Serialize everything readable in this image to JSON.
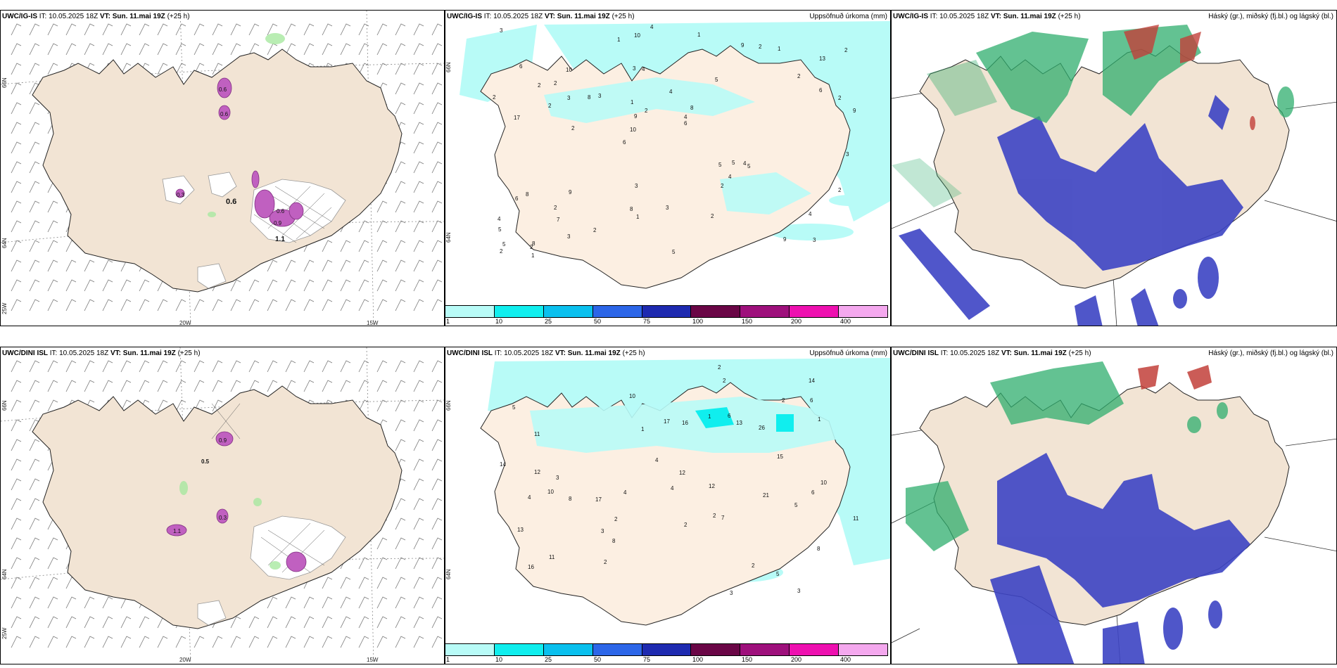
{
  "top_row": {
    "wind_panel": {
      "model": "UWC/IG-IS",
      "it_label": "IT:",
      "it_value": "10.05.2025 18Z",
      "vt_label": "VT:",
      "vt_value": "Sun. 11.mai 19Z",
      "lead": "(+25 h)",
      "values": [
        "0.6",
        "0.6",
        "0.6",
        "0.6",
        "0.9",
        "1.1",
        "0.3"
      ],
      "lat_labels": [
        "66N",
        "64N",
        "25W"
      ],
      "lon_labels": [
        "20W",
        "15W"
      ]
    },
    "precip_panel": {
      "model": "UWC/IG-IS",
      "it_label": "IT:",
      "it_value": "10.05.2025 18Z",
      "vt_label": "VT:",
      "vt_value": "Sun. 11.mai 19Z",
      "lead": "(+25 h)",
      "title": "Uppsöfnuð úrkoma (mm)",
      "lat_labels": [
        "66N",
        "64N"
      ]
    },
    "cloud_panel": {
      "model": "UWC/IG-IS",
      "it_label": "IT:",
      "it_value": "10.05.2025 18Z",
      "vt_label": "VT:",
      "vt_value": "Sun. 11.mai 19Z",
      "lead": "(+25 h)",
      "title": "Háský (gr.), miðský (fj.bl.) og lágský (bl.)"
    }
  },
  "bottom_row": {
    "wind_panel": {
      "model": "UWC/DINI ISL",
      "it_label": "IT:",
      "it_value": "10.05.2025 18Z",
      "vt_label": "VT:",
      "vt_value": "Sun. 11.mai 19Z",
      "lead": "(+25 h)",
      "values": [
        "0.5",
        "0.9",
        "1.1",
        "0.3"
      ],
      "lat_labels": [
        "66N",
        "64N",
        "25W"
      ],
      "lon_labels": [
        "20W",
        "15W"
      ]
    },
    "precip_panel": {
      "model": "UWC/DINI ISL",
      "it_label": "IT:",
      "it_value": "10.05.2025 18Z",
      "vt_label": "VT:",
      "vt_value": "Sun. 11.mai 19Z",
      "lead": "(+25 h)",
      "title": "Uppsöfnuð úrkoma (mm)",
      "lat_labels": [
        "66N",
        "64N"
      ]
    },
    "cloud_panel": {
      "model": "UWC/DINI ISL",
      "it_label": "IT:",
      "it_value": "10.05.2025 18Z",
      "vt_label": "VT:",
      "vt_value": "Sun. 11.mai 19Z",
      "lead": "(+25 h)",
      "title": "Háský (gr.), miðský (fj.bl.) og lágský (bl.)"
    }
  },
  "precip_numbers_top": [
    "3",
    "17",
    "13",
    "6",
    "5",
    "8",
    "3",
    "4",
    "8",
    "3",
    "5",
    "7",
    "4",
    "8",
    "5",
    "6",
    "10",
    "9",
    "5",
    "6",
    "10",
    "8",
    "9",
    "10",
    "9",
    "9",
    "9",
    "4",
    "4",
    "5",
    "8",
    "2",
    "2",
    "3",
    "2",
    "4",
    "5",
    "1",
    "6",
    "6",
    "2",
    "2",
    "4",
    "2",
    "2",
    "1",
    "2",
    "3",
    "1",
    "4",
    "2",
    "2",
    "2",
    "2",
    "2",
    "1",
    "1",
    "2",
    "2",
    "3",
    "2",
    "5",
    "3",
    "4",
    "3",
    "2",
    "3",
    "1"
  ],
  "precip_numbers_bottom": [
    "3",
    "10",
    "2",
    "5",
    "8",
    "11",
    "11",
    "17",
    "26",
    "17",
    "13",
    "5",
    "8",
    "10",
    "12",
    "13",
    "21",
    "12",
    "14",
    "16",
    "14",
    "16",
    "15",
    "11",
    "10",
    "12",
    "8",
    "4",
    "4",
    "6",
    "7",
    "4",
    "3",
    "6",
    "1",
    "5",
    "6",
    "2",
    "2",
    "3",
    "2",
    "2",
    "2",
    "2",
    "4",
    "3",
    "1",
    "2",
    "1"
  ],
  "legend": {
    "colors": [
      "#b8fbf7",
      "#10eeee",
      "#0ac0ee",
      "#2c66e8",
      "#1e2ab0",
      "#6a0646",
      "#9e107c",
      "#ee10b0",
      "#f4a8ee"
    ],
    "labels": [
      "1",
      "10",
      "25",
      "50",
      "75",
      "100",
      "150",
      "200",
      "400"
    ]
  },
  "colors": {
    "land": "#f2e4d4",
    "precip_land": "#fcefe2",
    "low_cloud": "#3d44c4",
    "mid_cloud": "#2fae6e",
    "high_cloud": "#c2403a"
  }
}
